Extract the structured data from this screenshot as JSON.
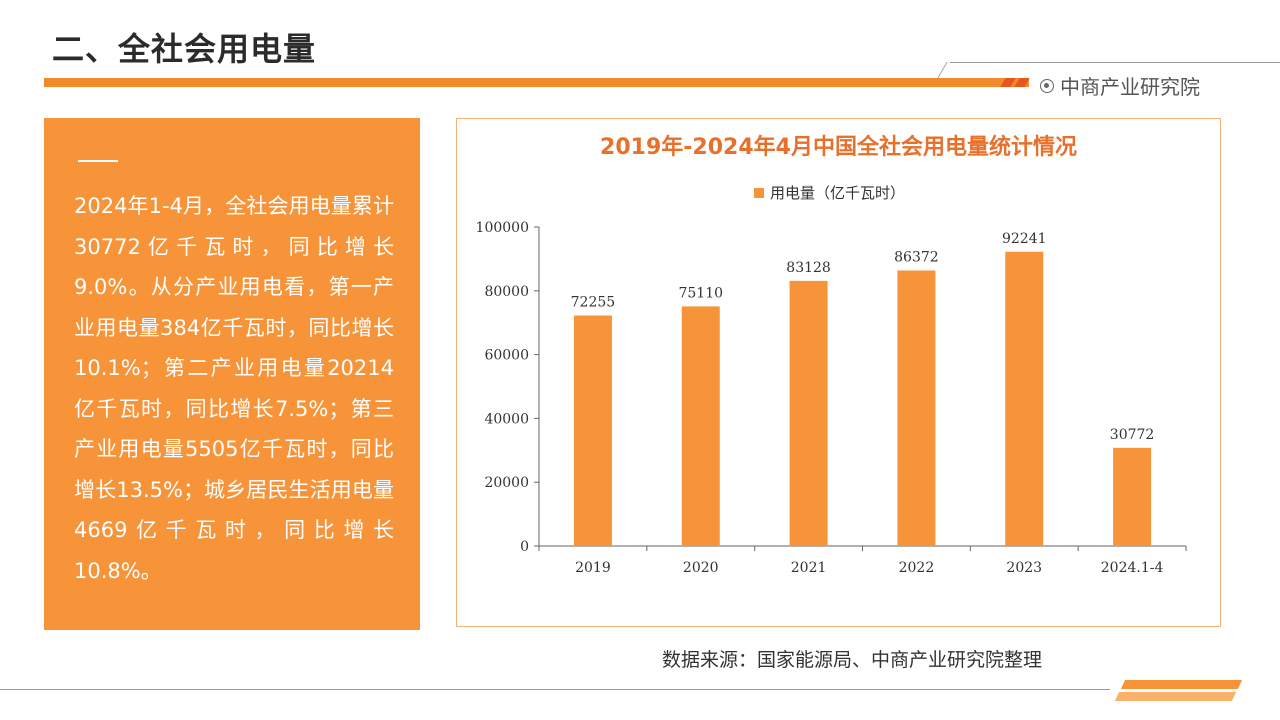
{
  "header": {
    "title": "二、全社会用电量",
    "brand": "中商产业研究院",
    "brand_icon": "target-icon"
  },
  "summary": {
    "text": "2024年1-4月，全社会用电量累计30772亿千瓦时，同比增长9.0%。从分产业用电看，第一产业用电量384亿千瓦时，同比增长10.1%；第二产业用电量20214亿千瓦时，同比增长7.5%；第三产业用电量5505亿千瓦时，同比增长13.5%；城乡居民生活用电量4669亿千瓦时，同比增长10.8%。"
  },
  "chart_data": {
    "type": "bar",
    "title": "2019年-2024年4月中国全社会用电量统计情况",
    "legend_position": "top-center",
    "categories": [
      "2019",
      "2020",
      "2021",
      "2022",
      "2023",
      "2024.1-4"
    ],
    "series": [
      {
        "name": "用电量（亿千瓦时）",
        "values": [
          72255,
          75110,
          83128,
          86372,
          92241,
          30772
        ],
        "color": "#f7943a"
      }
    ],
    "ylim": [
      0,
      100000
    ],
    "yticks": [
      0,
      20000,
      40000,
      60000,
      80000,
      100000
    ],
    "grid": false
  },
  "footer": {
    "source": "数据来源：国家能源局、中商产业研究院整理"
  },
  "colors": {
    "accent": "#f7943a",
    "accent_dark": "#e8551e",
    "title": "#e8702a"
  }
}
